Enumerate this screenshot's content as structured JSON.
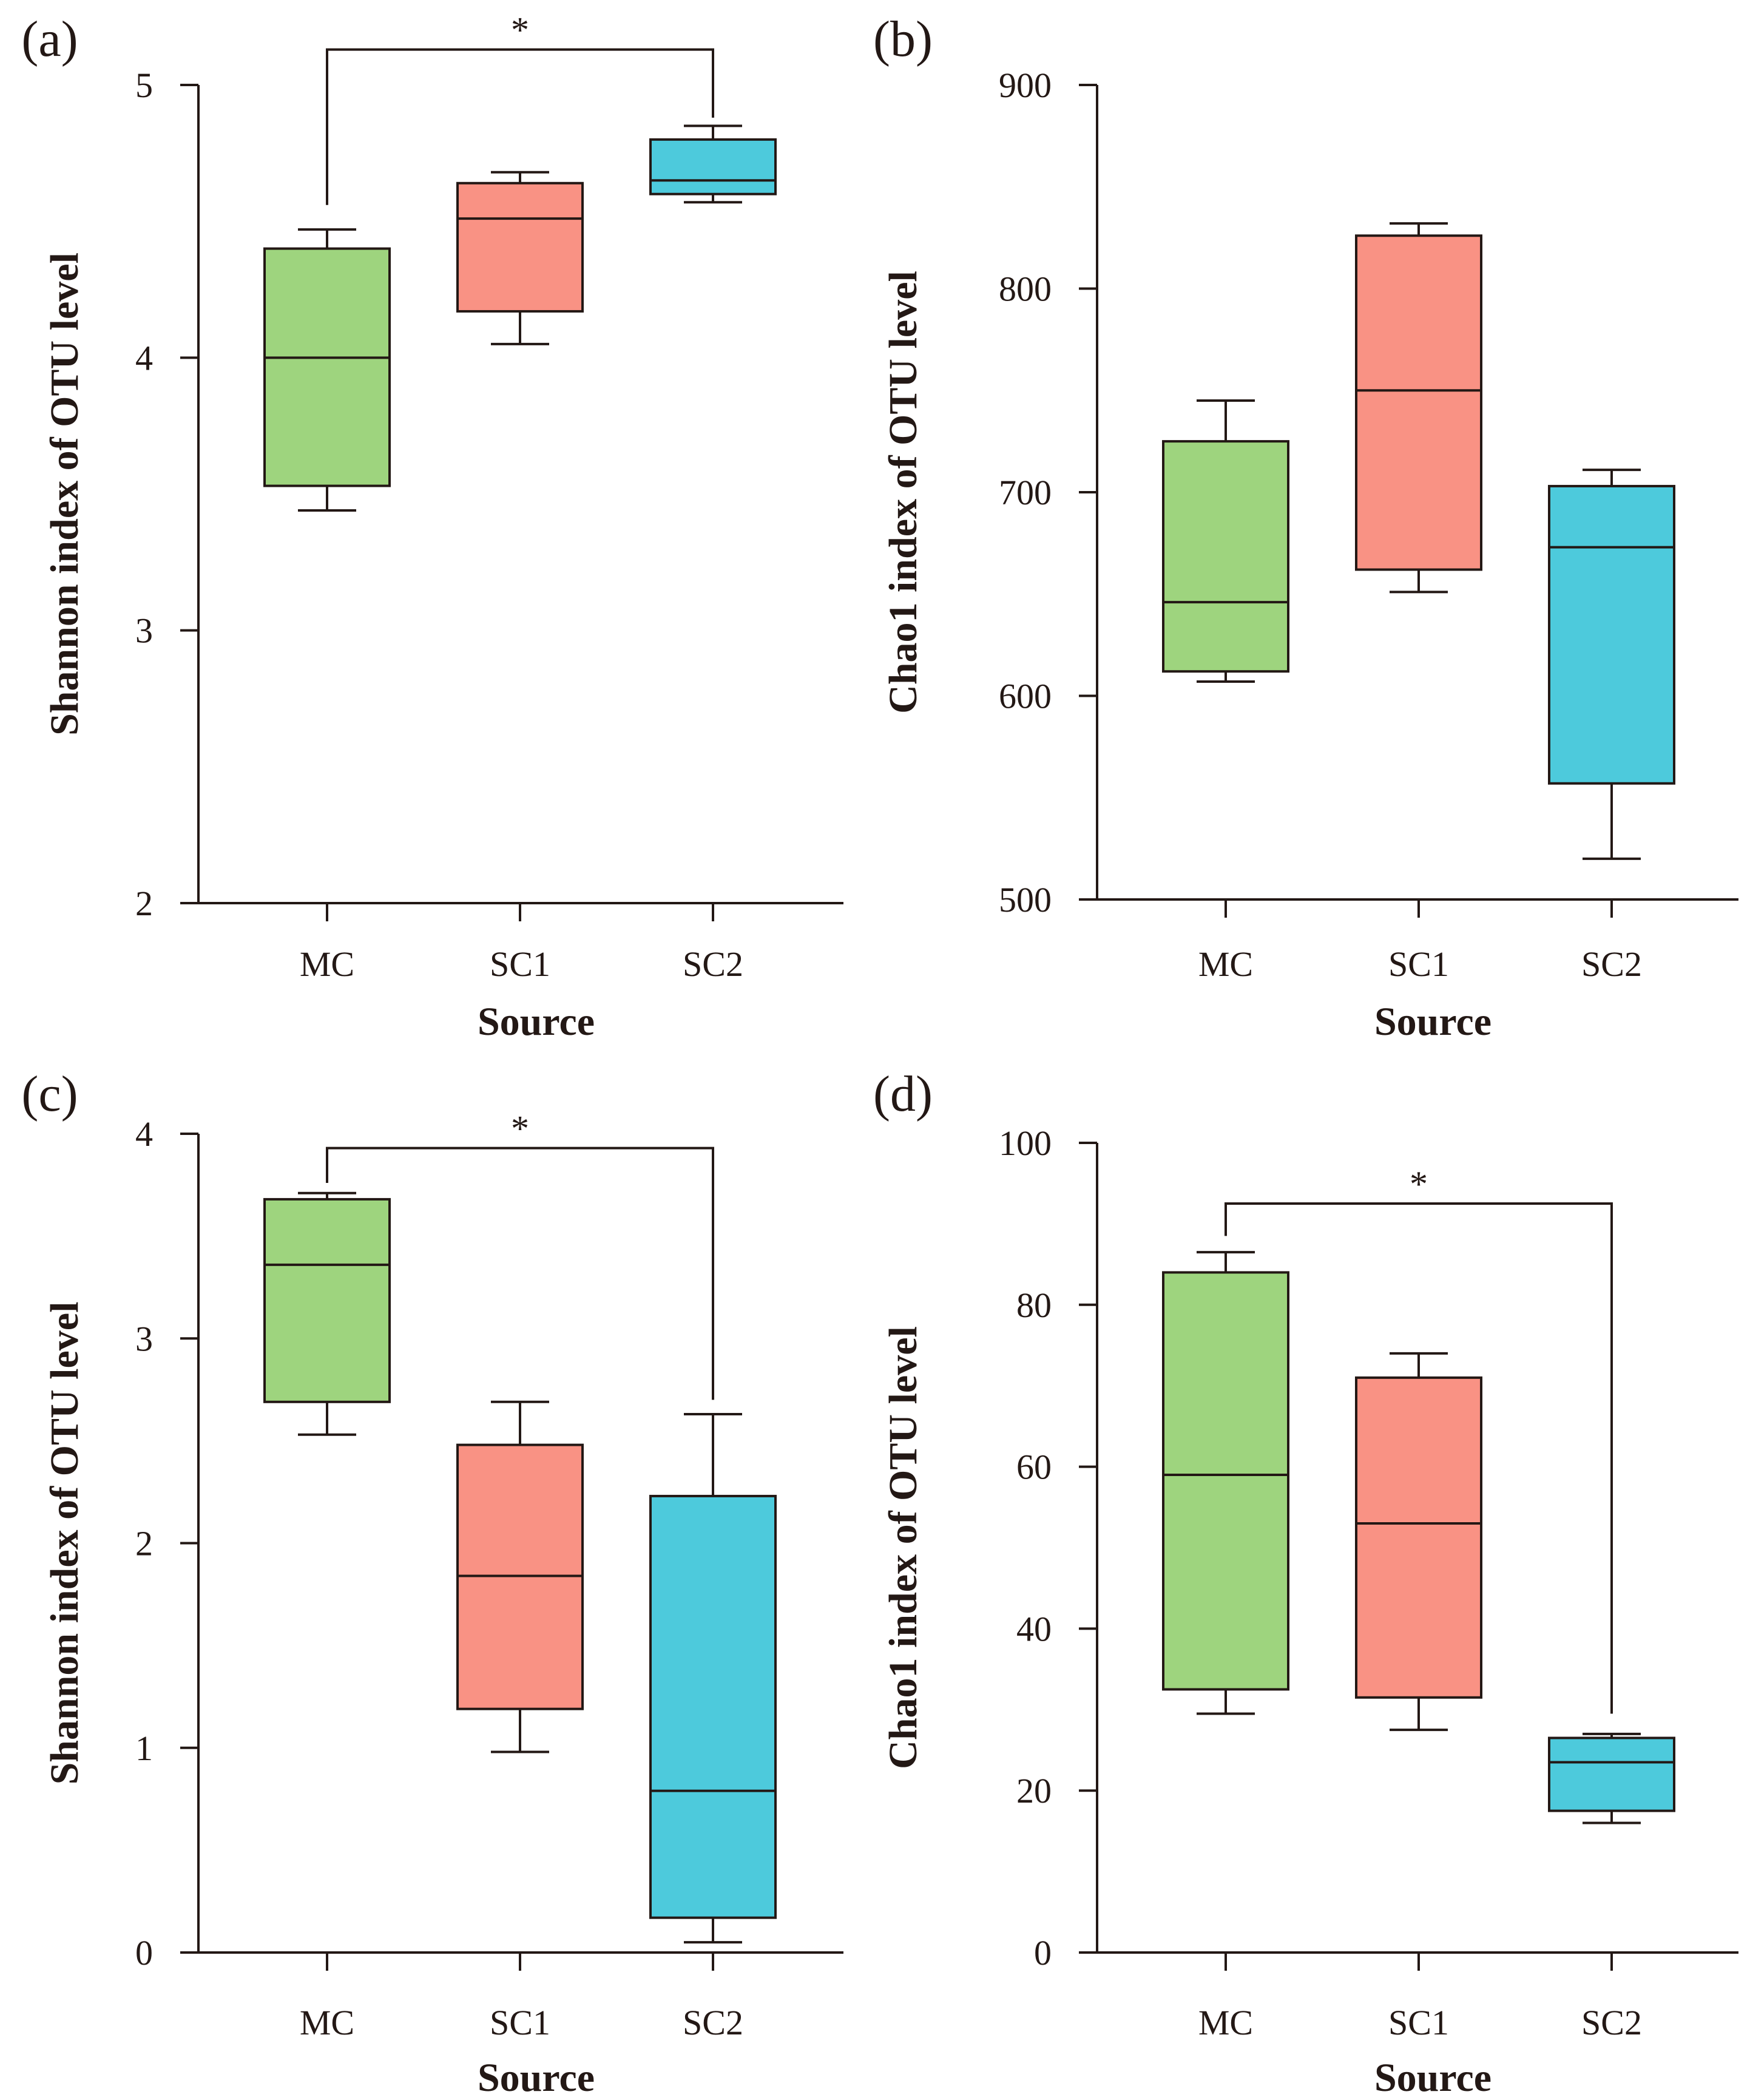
{
  "colors": {
    "MC": "#9ed47e",
    "SC1": "#f99284",
    "SC2": "#4dcadc",
    "ink": "#231815"
  },
  "chart_data": [
    {
      "type": "box",
      "label": "(a)",
      "xlabel": "Source",
      "ylabel": "Shannon index of OTU level",
      "ylim": [
        2,
        5
      ],
      "yticks": [
        2,
        3,
        4,
        5
      ],
      "categories": [
        "MC",
        "SC1",
        "SC2"
      ],
      "boxes": [
        {
          "category": "MC",
          "min": 3.44,
          "q1": 3.53,
          "median": 4.0,
          "q3": 4.4,
          "max": 4.47
        },
        {
          "category": "SC1",
          "min": 4.05,
          "q1": 4.17,
          "median": 4.51,
          "q3": 4.64,
          "max": 4.68
        },
        {
          "category": "SC2",
          "min": 4.57,
          "q1": 4.6,
          "median": 4.65,
          "q3": 4.8,
          "max": 4.85
        }
      ],
      "significance": {
        "from": "MC",
        "to": "SC2",
        "label": "*",
        "level": 5.13,
        "from_end": 4.56,
        "to_end": 4.88
      }
    },
    {
      "type": "box",
      "label": "(b)",
      "xlabel": "Source",
      "ylabel": "Chao1 index of OTU level",
      "ylim": [
        500,
        900
      ],
      "yticks": [
        500,
        600,
        700,
        800,
        900
      ],
      "categories": [
        "MC",
        "SC1",
        "SC2"
      ],
      "boxes": [
        {
          "category": "MC",
          "min": 607,
          "q1": 612,
          "median": 646,
          "q3": 725,
          "max": 745
        },
        {
          "category": "SC1",
          "min": 651,
          "q1": 662,
          "median": 750,
          "q3": 826,
          "max": 832
        },
        {
          "category": "SC2",
          "min": 520,
          "q1": 557,
          "median": 673,
          "q3": 703,
          "max": 711
        }
      ]
    },
    {
      "type": "box",
      "label": "(c)",
      "xlabel": "Source",
      "ylabel": "Shannon index of OTU level",
      "ylim": [
        0,
        4
      ],
      "yticks": [
        0,
        1,
        2,
        3,
        4
      ],
      "categories": [
        "MC",
        "SC1",
        "SC2"
      ],
      "boxes": [
        {
          "category": "MC",
          "min": 2.53,
          "q1": 2.69,
          "median": 3.36,
          "q3": 3.68,
          "max": 3.71
        },
        {
          "category": "SC1",
          "min": 0.98,
          "q1": 1.19,
          "median": 1.84,
          "q3": 2.48,
          "max": 2.69
        },
        {
          "category": "SC2",
          "min": 0.05,
          "q1": 0.17,
          "median": 0.79,
          "q3": 2.23,
          "max": 2.63
        }
      ],
      "significance": {
        "from": "MC",
        "to": "SC2",
        "label": "*",
        "level": 3.93,
        "from_end": 3.76,
        "to_end": 2.7
      }
    },
    {
      "type": "box",
      "label": "(d)",
      "xlabel": "Source",
      "ylabel": "Chao1 index of OTU level",
      "ylim": [
        0,
        100
      ],
      "yticks": [
        0,
        20,
        40,
        60,
        80,
        100
      ],
      "categories": [
        "MC",
        "SC1",
        "SC2"
      ],
      "boxes": [
        {
          "category": "MC",
          "min": 29.5,
          "q1": 32.5,
          "median": 59.0,
          "q3": 84.0,
          "max": 86.5
        },
        {
          "category": "SC1",
          "min": 27.5,
          "q1": 31.5,
          "median": 53.0,
          "q3": 71.0,
          "max": 74.0
        },
        {
          "category": "SC2",
          "min": 16.0,
          "q1": 17.5,
          "median": 23.5,
          "q3": 26.5,
          "max": 27.0
        }
      ],
      "significance": {
        "from": "MC",
        "to": "SC2",
        "label": "*",
        "level": 92.5,
        "from_end": 88.5,
        "to_end": 29.5
      }
    }
  ]
}
